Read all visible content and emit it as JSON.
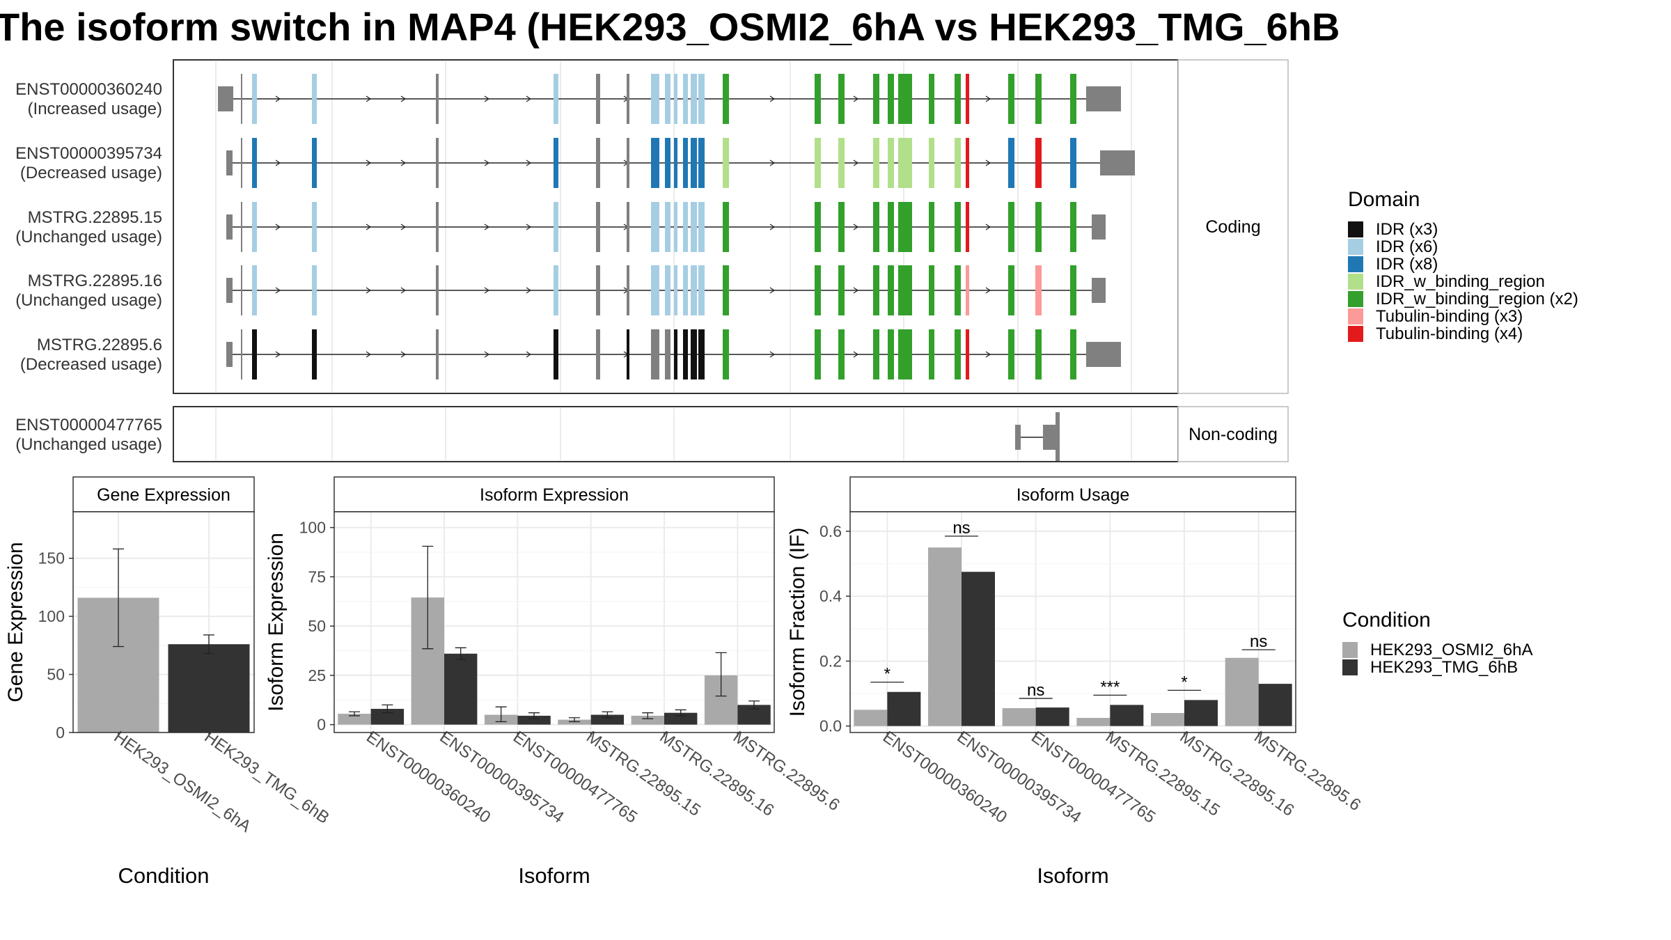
{
  "title": "The isoform switch in MAP4 (HEK293_OSMI2_6hA vs HEK293_TMG_6hB",
  "colors": {
    "cond1": "#a9a9a9",
    "cond2": "#333333",
    "exon": "#808080",
    "panel_border": "#333333",
    "grid": "#ebebeb"
  },
  "structure": {
    "coding_label": "Coding",
    "noncoding_label": "Non-coding",
    "isoforms": [
      {
        "id": "ENST00000360240",
        "usage": "(Increased usage)",
        "scheme": "inc"
      },
      {
        "id": "ENST00000395734",
        "usage": "(Decreased usage)",
        "scheme": "dec"
      },
      {
        "id": "MSTRG.22895.15",
        "usage": "(Unchanged usage)",
        "scheme": "u15"
      },
      {
        "id": "MSTRG.22895.16",
        "usage": "(Unchanged usage)",
        "scheme": "u16"
      },
      {
        "id": "MSTRG.22895.6",
        "usage": "(Decreased usage)",
        "scheme": "d6"
      }
    ],
    "noncoding": [
      {
        "id": "ENST00000477765",
        "usage": "(Unchanged usage)"
      }
    ]
  },
  "domain_legend": {
    "title": "Domain",
    "items": [
      {
        "label": "IDR (x3)",
        "color": "#111111"
      },
      {
        "label": "IDR (x6)",
        "color": "#a6cee3"
      },
      {
        "label": "IDR (x8)",
        "color": "#1f78b4"
      },
      {
        "label": "IDR_w_binding_region",
        "color": "#b2df8a"
      },
      {
        "label": "IDR_w_binding_region (x2)",
        "color": "#33a02c"
      },
      {
        "label": "Tubulin-binding (x3)",
        "color": "#fb9a99"
      },
      {
        "label": "Tubulin-binding (x4)",
        "color": "#e31a1c"
      }
    ]
  },
  "condition_legend": {
    "title": "Condition",
    "items": [
      "HEK293_OSMI2_6hA",
      "HEK293_TMG_6hB"
    ]
  },
  "chart_data": [
    {
      "type": "bar",
      "title": "Gene Expression",
      "xlabel": "Condition",
      "ylabel": "Gene Expression",
      "ylim": [
        0,
        190
      ],
      "yticks": [
        0,
        50,
        100,
        150
      ],
      "categories": [
        "HEK293_OSMI2_6hA",
        "HEK293_TMG_6hB"
      ],
      "values": [
        116,
        76
      ],
      "error_low": [
        74,
        68
      ],
      "error_high": [
        158,
        84
      ]
    },
    {
      "type": "bar",
      "title": "Isoform Expression",
      "xlabel": "Isoform",
      "ylabel": "Isoform Expression",
      "ylim": [
        -4,
        108
      ],
      "yticks": [
        0,
        25,
        50,
        75,
        100
      ],
      "categories": [
        "ENST00000360240",
        "ENST00000395734",
        "ENST00000477765",
        "MSTRG.22895.15",
        "MSTRG.22895.16",
        "MSTRG.22895.6"
      ],
      "series": [
        {
          "name": "HEK293_OSMI2_6hA",
          "values": [
            5.5,
            64.5,
            5.0,
            2.5,
            4.5,
            25
          ],
          "error_low": [
            4.5,
            38.5,
            1.5,
            1.5,
            3.0,
            14.5
          ],
          "error_high": [
            6.5,
            90.5,
            9.0,
            3.5,
            6.0,
            36.5
          ]
        },
        {
          "name": "HEK293_TMG_6hB",
          "values": [
            8.0,
            36.0,
            4.5,
            5.0,
            6.0,
            10.0
          ],
          "error_low": [
            6.0,
            33.0,
            3.0,
            3.5,
            4.5,
            8.0
          ],
          "error_high": [
            10.0,
            39.0,
            6.0,
            6.5,
            7.5,
            12.0
          ]
        }
      ]
    },
    {
      "type": "bar",
      "title": "Isoform Usage",
      "xlabel": "Isoform",
      "ylabel": "Isoform Fraction (IF)",
      "ylim": [
        -0.02,
        0.66
      ],
      "yticks": [
        0.0,
        0.2,
        0.4,
        0.6
      ],
      "categories": [
        "ENST00000360240",
        "ENST00000395734",
        "ENST00000477765",
        "MSTRG.22895.15",
        "MSTRG.22895.16",
        "MSTRG.22895.6"
      ],
      "series": [
        {
          "name": "HEK293_OSMI2_6hA",
          "values": [
            0.05,
            0.55,
            0.055,
            0.025,
            0.04,
            0.21
          ]
        },
        {
          "name": "HEK293_TMG_6hB",
          "values": [
            0.105,
            0.475,
            0.057,
            0.065,
            0.08,
            0.13
          ]
        }
      ],
      "significance": [
        "*",
        "ns",
        "ns",
        "***",
        "*",
        "ns"
      ],
      "sig_y": [
        0.135,
        0.585,
        0.085,
        0.095,
        0.11,
        0.235
      ]
    }
  ]
}
